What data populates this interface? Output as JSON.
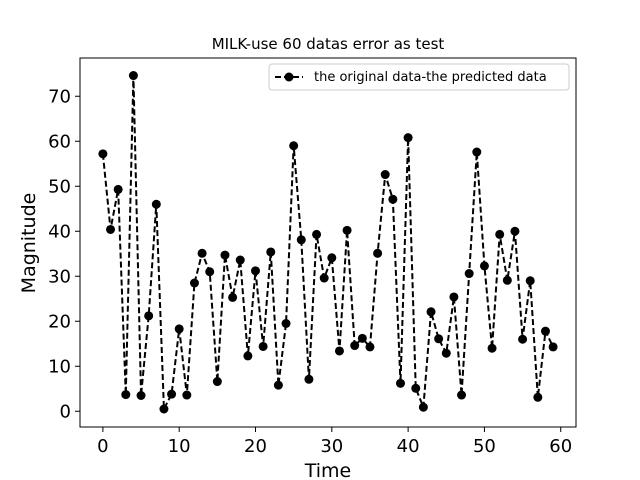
{
  "chart_data": {
    "type": "line",
    "title": "MILK-use 60 datas error as test",
    "xlabel": "Time",
    "ylabel": "Magnitude",
    "xlim": [
      -3,
      62
    ],
    "ylim": [
      -3.5,
      78.5
    ],
    "xticks": [
      0,
      10,
      20,
      30,
      40,
      50,
      60
    ],
    "yticks": [
      0,
      10,
      20,
      30,
      40,
      50,
      60,
      70
    ],
    "grid": false,
    "legend_position": "upper right",
    "series": [
      {
        "name": "the original data-the predicted data",
        "color": "#000000",
        "line_style": "dashed",
        "marker": "circle",
        "x": [
          0,
          1,
          2,
          3,
          4,
          5,
          6,
          7,
          8,
          9,
          10,
          11,
          12,
          13,
          14,
          15,
          16,
          17,
          18,
          19,
          20,
          21,
          22,
          23,
          24,
          25,
          26,
          27,
          28,
          29,
          30,
          31,
          32,
          33,
          34,
          35,
          36,
          37,
          38,
          39,
          40,
          41,
          42,
          43,
          44,
          45,
          46,
          47,
          48,
          49,
          50,
          51,
          52,
          53,
          54,
          55,
          56,
          57,
          58,
          59
        ],
        "values": [
          57.2,
          40.4,
          49.3,
          3.7,
          74.6,
          3.5,
          21.2,
          46.0,
          0.5,
          3.8,
          18.3,
          3.6,
          28.5,
          35.1,
          31.0,
          6.6,
          34.7,
          25.3,
          33.6,
          12.3,
          31.2,
          14.4,
          35.4,
          5.8,
          19.5,
          59.0,
          38.1,
          7.1,
          39.3,
          29.6,
          34.1,
          13.4,
          40.2,
          14.6,
          16.2,
          14.3,
          35.1,
          52.6,
          47.1,
          6.2,
          60.8,
          5.1,
          0.9,
          22.1,
          16.1,
          12.9,
          25.4,
          3.6,
          30.6,
          57.6,
          32.3,
          14.0,
          39.3,
          29.1,
          40.0,
          16.0,
          29.0,
          3.1,
          17.8,
          14.3
        ]
      }
    ]
  }
}
